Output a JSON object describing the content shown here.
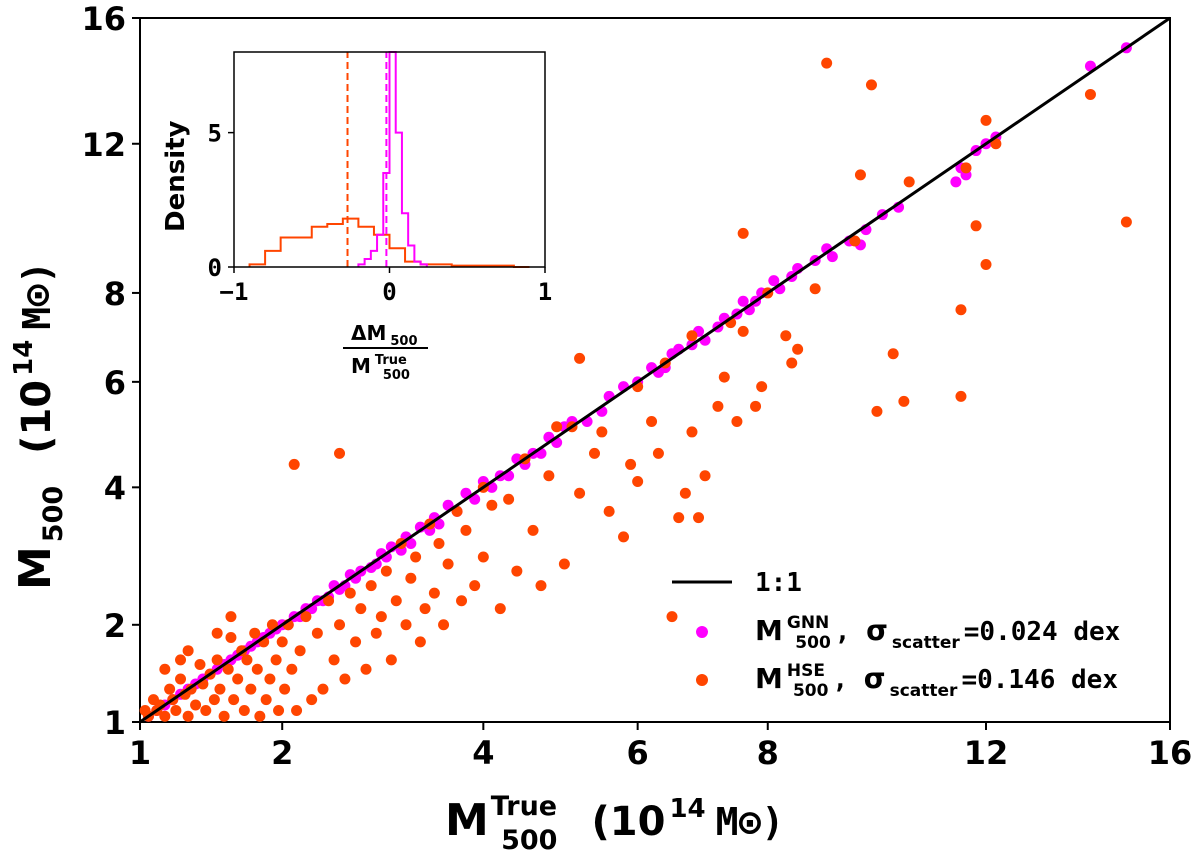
{
  "colors": {
    "gnn": "#ff00ff",
    "hse": "#ff4500",
    "line": "#000000",
    "axis": "#000000"
  },
  "chart_data": {
    "type": "scatter",
    "x_scale": "sqrt",
    "y_scale": "sqrt",
    "xlim": [
      1,
      16
    ],
    "ylim": [
      1,
      16
    ],
    "x_ticks": [
      1,
      2,
      4,
      6,
      8,
      12,
      16
    ],
    "y_ticks": [
      1,
      2,
      4,
      6,
      8,
      12,
      16
    ],
    "xlabel": {
      "main": "M",
      "sup": "True",
      "sub": "500",
      "unit_open": "(10",
      "unit_exp": "14",
      "unit_close": "M⊙)"
    },
    "ylabel": {
      "main": "M",
      "sub": "500",
      "unit_open": "(10",
      "unit_exp": "14",
      "unit_close": "M⊙)"
    },
    "identity_line": {
      "label": "1:1",
      "from": [
        1,
        1
      ],
      "to": [
        16,
        16
      ]
    },
    "legend": [
      {
        "key": "line",
        "text": "1:1"
      },
      {
        "key": "gnn",
        "main": "M",
        "sup": "GNN",
        "sub": "500",
        "rest_a": ", ",
        "sigma": "σ",
        "sigma_sub": "scatter",
        "rest_b": "=0.024 dex"
      },
      {
        "key": "hse",
        "main": "M",
        "sup": "HSE",
        "sub": "500",
        "rest_a": ", ",
        "sigma": "σ",
        "sigma_sub": "scatter",
        "rest_b": "=0.146 dex"
      }
    ],
    "series": [
      {
        "name": "GNN",
        "points": [
          [
            15.0,
            15.0
          ],
          [
            14.2,
            14.4
          ],
          [
            12.2,
            12.2
          ],
          [
            12.0,
            12.0
          ],
          [
            11.8,
            11.8
          ],
          [
            11.5,
            11.3
          ],
          [
            11.4,
            10.9
          ],
          [
            11.6,
            11.1
          ],
          [
            10.3,
            10.2
          ],
          [
            10.0,
            10.0
          ],
          [
            9.7,
            9.6
          ],
          [
            9.6,
            9.2
          ],
          [
            9.4,
            9.3
          ],
          [
            9.1,
            8.9
          ],
          [
            9.0,
            9.1
          ],
          [
            8.8,
            8.8
          ],
          [
            8.5,
            8.6
          ],
          [
            8.4,
            8.4
          ],
          [
            8.2,
            8.1
          ],
          [
            8.1,
            8.3
          ],
          [
            7.9,
            8.0
          ],
          [
            7.8,
            7.8
          ],
          [
            7.7,
            7.6
          ],
          [
            7.6,
            7.8
          ],
          [
            7.5,
            7.5
          ],
          [
            7.3,
            7.4
          ],
          [
            7.2,
            7.2
          ],
          [
            7.0,
            6.9
          ],
          [
            6.9,
            7.1
          ],
          [
            6.8,
            6.8
          ],
          [
            6.6,
            6.7
          ],
          [
            6.5,
            6.6
          ],
          [
            6.4,
            6.3
          ],
          [
            6.3,
            6.2
          ],
          [
            6.2,
            6.3
          ],
          [
            6.0,
            6.0
          ],
          [
            5.8,
            5.9
          ],
          [
            5.6,
            5.7
          ],
          [
            5.5,
            5.4
          ],
          [
            5.3,
            5.2
          ],
          [
            5.1,
            5.2
          ],
          [
            5.0,
            5.1
          ],
          [
            4.9,
            4.8
          ],
          [
            4.8,
            4.9
          ],
          [
            4.7,
            4.6
          ],
          [
            4.6,
            4.6
          ],
          [
            4.5,
            4.4
          ],
          [
            4.4,
            4.5
          ],
          [
            4.3,
            4.2
          ],
          [
            4.2,
            4.2
          ],
          [
            4.1,
            4.0
          ],
          [
            4.0,
            4.1
          ],
          [
            3.9,
            3.8
          ],
          [
            3.8,
            3.9
          ],
          [
            3.7,
            3.6
          ],
          [
            3.6,
            3.7
          ],
          [
            3.5,
            3.4
          ],
          [
            3.45,
            3.5
          ],
          [
            3.4,
            3.3
          ],
          [
            3.3,
            3.35
          ],
          [
            3.2,
            3.1
          ],
          [
            3.15,
            3.2
          ],
          [
            3.1,
            3.0
          ],
          [
            3.0,
            3.05
          ],
          [
            2.95,
            2.9
          ],
          [
            2.9,
            2.95
          ],
          [
            2.85,
            2.8
          ],
          [
            2.8,
            2.75
          ],
          [
            2.7,
            2.7
          ],
          [
            2.65,
            2.6
          ],
          [
            2.6,
            2.65
          ],
          [
            2.55,
            2.5
          ],
          [
            2.5,
            2.45
          ],
          [
            2.45,
            2.5
          ],
          [
            2.4,
            2.35
          ],
          [
            2.35,
            2.3
          ],
          [
            2.3,
            2.3
          ],
          [
            2.25,
            2.2
          ],
          [
            2.2,
            2.2
          ],
          [
            2.15,
            2.1
          ],
          [
            2.1,
            2.1
          ],
          [
            2.05,
            2.0
          ],
          [
            2.0,
            2.0
          ],
          [
            1.95,
            1.95
          ],
          [
            1.9,
            1.9
          ],
          [
            1.85,
            1.85
          ],
          [
            1.8,
            1.8
          ],
          [
            1.75,
            1.75
          ],
          [
            1.7,
            1.7
          ],
          [
            1.65,
            1.65
          ],
          [
            1.6,
            1.6
          ],
          [
            1.55,
            1.55
          ],
          [
            1.5,
            1.5
          ],
          [
            1.45,
            1.45
          ],
          [
            1.4,
            1.4
          ],
          [
            1.35,
            1.35
          ],
          [
            1.3,
            1.3
          ],
          [
            1.25,
            1.25
          ],
          [
            1.2,
            1.2
          ],
          [
            1.15,
            1.15
          ],
          [
            1.1,
            1.1
          ],
          [
            1.05,
            1.05
          ]
        ]
      },
      {
        "name": "HSE",
        "points": [
          [
            15.0,
            9.8
          ],
          [
            14.2,
            13.5
          ],
          [
            12.2,
            12.0
          ],
          [
            12.0,
            12.7
          ],
          [
            12.0,
            8.7
          ],
          [
            11.8,
            9.7
          ],
          [
            11.6,
            11.3
          ],
          [
            11.5,
            5.7
          ],
          [
            11.5,
            7.6
          ],
          [
            10.5,
            10.9
          ],
          [
            10.4,
            5.6
          ],
          [
            10.2,
            6.6
          ],
          [
            9.9,
            5.4
          ],
          [
            9.8,
            13.8
          ],
          [
            9.6,
            11.1
          ],
          [
            9.5,
            9.3
          ],
          [
            9.0,
            14.5
          ],
          [
            8.8,
            8.1
          ],
          [
            8.5,
            6.7
          ],
          [
            8.4,
            6.4
          ],
          [
            8.3,
            7.0
          ],
          [
            8.0,
            8.0
          ],
          [
            7.9,
            5.9
          ],
          [
            7.8,
            5.5
          ],
          [
            7.6,
            9.5
          ],
          [
            7.6,
            7.1
          ],
          [
            7.5,
            5.2
          ],
          [
            7.4,
            7.3
          ],
          [
            7.3,
            6.1
          ],
          [
            7.2,
            5.5
          ],
          [
            7.0,
            4.2
          ],
          [
            6.9,
            3.5
          ],
          [
            6.8,
            5.0
          ],
          [
            6.8,
            7.0
          ],
          [
            6.7,
            3.9
          ],
          [
            6.6,
            3.5
          ],
          [
            6.5,
            2.1
          ],
          [
            6.4,
            6.4
          ],
          [
            6.3,
            4.6
          ],
          [
            6.2,
            5.2
          ],
          [
            6.0,
            4.1
          ],
          [
            6.0,
            5.9
          ],
          [
            5.9,
            4.4
          ],
          [
            5.8,
            3.2
          ],
          [
            5.6,
            3.6
          ],
          [
            5.5,
            5.0
          ],
          [
            5.4,
            4.6
          ],
          [
            5.2,
            6.5
          ],
          [
            5.2,
            3.9
          ],
          [
            5.1,
            5.1
          ],
          [
            5.0,
            2.8
          ],
          [
            4.9,
            5.1
          ],
          [
            4.8,
            4.2
          ],
          [
            4.7,
            2.5
          ],
          [
            4.6,
            3.3
          ],
          [
            4.5,
            4.5
          ],
          [
            4.4,
            2.7
          ],
          [
            4.3,
            3.8
          ],
          [
            4.2,
            2.2
          ],
          [
            4.1,
            3.7
          ],
          [
            4.0,
            2.9
          ],
          [
            4.0,
            4.0
          ],
          [
            3.9,
            2.5
          ],
          [
            3.8,
            3.3
          ],
          [
            3.75,
            2.3
          ],
          [
            3.7,
            3.6
          ],
          [
            3.6,
            2.8
          ],
          [
            3.55,
            2.0
          ],
          [
            3.5,
            3.1
          ],
          [
            3.45,
            2.4
          ],
          [
            3.4,
            3.4
          ],
          [
            3.35,
            2.2
          ],
          [
            3.3,
            1.8
          ],
          [
            3.25,
            2.9
          ],
          [
            3.2,
            2.6
          ],
          [
            3.15,
            2.0
          ],
          [
            3.1,
            3.1
          ],
          [
            3.05,
            2.3
          ],
          [
            3.0,
            1.6
          ],
          [
            2.95,
            2.7
          ],
          [
            2.9,
            2.1
          ],
          [
            2.85,
            1.9
          ],
          [
            2.8,
            2.5
          ],
          [
            2.75,
            1.5
          ],
          [
            2.7,
            2.2
          ],
          [
            2.65,
            1.8
          ],
          [
            2.6,
            2.4
          ],
          [
            2.55,
            1.4
          ],
          [
            2.5,
            2.0
          ],
          [
            2.5,
            4.6
          ],
          [
            2.45,
            1.6
          ],
          [
            2.4,
            2.3
          ],
          [
            2.35,
            1.3
          ],
          [
            2.3,
            1.9
          ],
          [
            2.25,
            1.2
          ],
          [
            2.2,
            2.1
          ],
          [
            2.15,
            1.7
          ],
          [
            2.12,
            1.1
          ],
          [
            2.1,
            4.4
          ],
          [
            2.08,
            1.5
          ],
          [
            2.05,
            2.0
          ],
          [
            2.02,
            1.3
          ],
          [
            2.0,
            1.8
          ],
          [
            1.97,
            1.1
          ],
          [
            1.95,
            1.6
          ],
          [
            1.92,
            2.0
          ],
          [
            1.9,
            1.4
          ],
          [
            1.87,
            1.2
          ],
          [
            1.85,
            1.8
          ],
          [
            1.82,
            1.05
          ],
          [
            1.8,
            1.5
          ],
          [
            1.78,
            1.9
          ],
          [
            1.75,
            1.3
          ],
          [
            1.72,
            1.6
          ],
          [
            1.7,
            1.1
          ],
          [
            1.68,
            1.7
          ],
          [
            1.65,
            1.4
          ],
          [
            1.62,
            1.2
          ],
          [
            1.6,
            1.85
          ],
          [
            1.58,
            1.5
          ],
          [
            1.55,
            1.05
          ],
          [
            1.52,
            1.3
          ],
          [
            1.5,
            1.6
          ],
          [
            1.48,
            1.2
          ],
          [
            1.45,
            1.45
          ],
          [
            1.42,
            1.1
          ],
          [
            1.4,
            1.35
          ],
          [
            1.38,
            1.55
          ],
          [
            1.35,
            1.15
          ],
          [
            1.32,
            1.3
          ],
          [
            1.3,
            1.05
          ],
          [
            1.28,
            1.25
          ],
          [
            1.25,
            1.4
          ],
          [
            1.22,
            1.1
          ],
          [
            1.2,
            1.2
          ],
          [
            1.18,
            1.3
          ],
          [
            1.15,
            1.05
          ],
          [
            1.12,
            1.15
          ],
          [
            1.1,
            1.1
          ],
          [
            1.08,
            1.2
          ],
          [
            1.05,
            1.05
          ],
          [
            1.03,
            1.1
          ],
          [
            1.3,
            1.7
          ],
          [
            1.5,
            1.9
          ],
          [
            1.15,
            1.5
          ],
          [
            1.25,
            1.6
          ],
          [
            1.6,
            2.1
          ]
        ]
      }
    ],
    "inset": {
      "type": "histogram",
      "xlabel_num": "ΔM",
      "xlabel_num_sub": "500",
      "xlabel_den": "M",
      "xlabel_den_sup": "True",
      "xlabel_den_sub": "500",
      "ylabel": "Density",
      "xlim": [
        -1,
        1
      ],
      "ylim": [
        0,
        8
      ],
      "x_ticks": [
        -1,
        0,
        1
      ],
      "y_ticks": [
        0,
        5
      ],
      "x_tick_labels": [
        "−1",
        "0",
        "1"
      ],
      "y_tick_labels": [
        "0",
        "5"
      ],
      "gnn_median": -0.02,
      "hse_median": -0.27,
      "gnn_hist": {
        "edges": [
          -0.2,
          -0.16,
          -0.12,
          -0.08,
          -0.04,
          0.0,
          0.04,
          0.08,
          0.12,
          0.16,
          0.2,
          0.24
        ],
        "density": [
          0.1,
          0.3,
          0.6,
          1.2,
          3.5,
          8.0,
          5.0,
          2.0,
          0.8,
          0.2,
          0.1
        ]
      },
      "hse_hist": {
        "edges": [
          -0.9,
          -0.8,
          -0.7,
          -0.6,
          -0.5,
          -0.4,
          -0.3,
          -0.2,
          -0.1,
          0.0,
          0.1,
          0.2,
          0.3,
          0.4,
          0.5,
          0.6,
          0.7,
          0.8,
          0.9
        ],
        "density": [
          0.1,
          0.6,
          1.1,
          1.1,
          1.5,
          1.6,
          1.8,
          1.5,
          1.2,
          0.7,
          0.2,
          0.1,
          0.1,
          0.05,
          0.05,
          0.05,
          0.05,
          0.0
        ]
      }
    }
  }
}
